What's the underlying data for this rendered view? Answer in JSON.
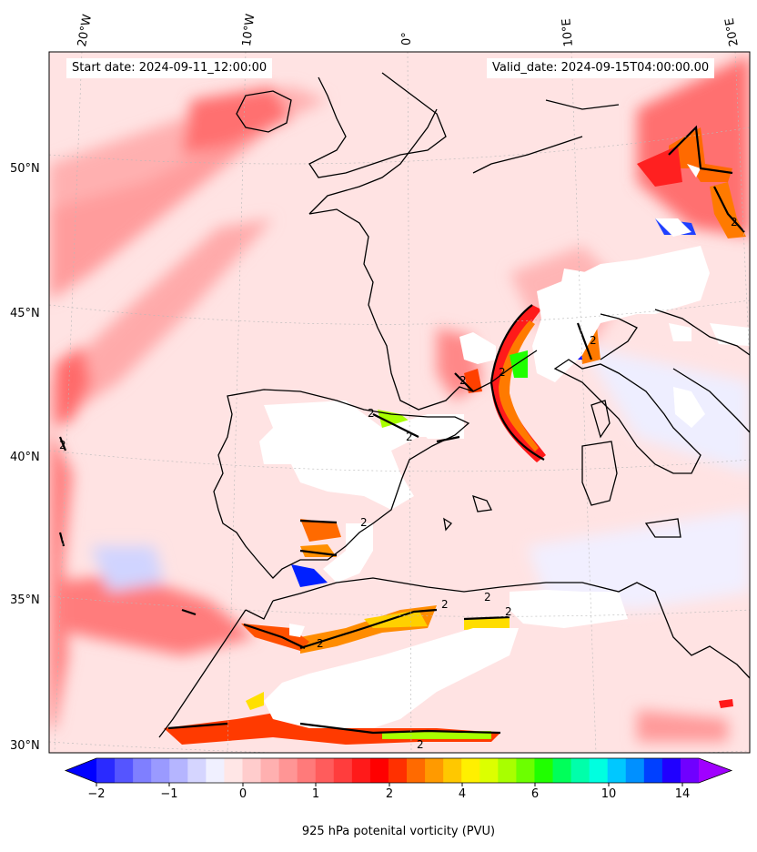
{
  "header": {
    "start_date": "Start date: 2024-09-11_12:00:00",
    "valid_date": "Valid_date: 2024-09-15T04:00:00.00"
  },
  "longitude_labels": [
    "20°W",
    "10°W",
    "0°",
    "10°E",
    "20°E"
  ],
  "latitude_labels": [
    "50°N",
    "45°N",
    "40°N",
    "35°N",
    "30°N"
  ],
  "contour_label": "2",
  "colorbar": {
    "label": "925 hPa potenital vorticity (PVU)",
    "ticks": [
      "−2",
      "−1",
      "0",
      "1",
      "2",
      "4",
      "6",
      "10",
      "14"
    ],
    "colors": [
      "#0000ff",
      "#2a2aff",
      "#5555ff",
      "#7f7fff",
      "#9a9aff",
      "#b5b5ff",
      "#d5d5ff",
      "#f0f0ff",
      "#ffe6e6",
      "#ffcccc",
      "#ffb0b0",
      "#ff9595",
      "#ff7a7a",
      "#ff5c5c",
      "#ff3d3d",
      "#ff1a1a",
      "#ff0000",
      "#ff3000",
      "#ff6a00",
      "#ff9a00",
      "#ffc800",
      "#fff000",
      "#dcff00",
      "#a8ff00",
      "#6cff00",
      "#20ff00",
      "#00ff5a",
      "#00ffaa",
      "#00ffe0",
      "#00c8ff",
      "#0090ff",
      "#0040ff",
      "#2000ff",
      "#7000ff",
      "#a000ff"
    ]
  },
  "colors": {
    "background_field": "#ffe2e2",
    "coastline": "#000000"
  }
}
